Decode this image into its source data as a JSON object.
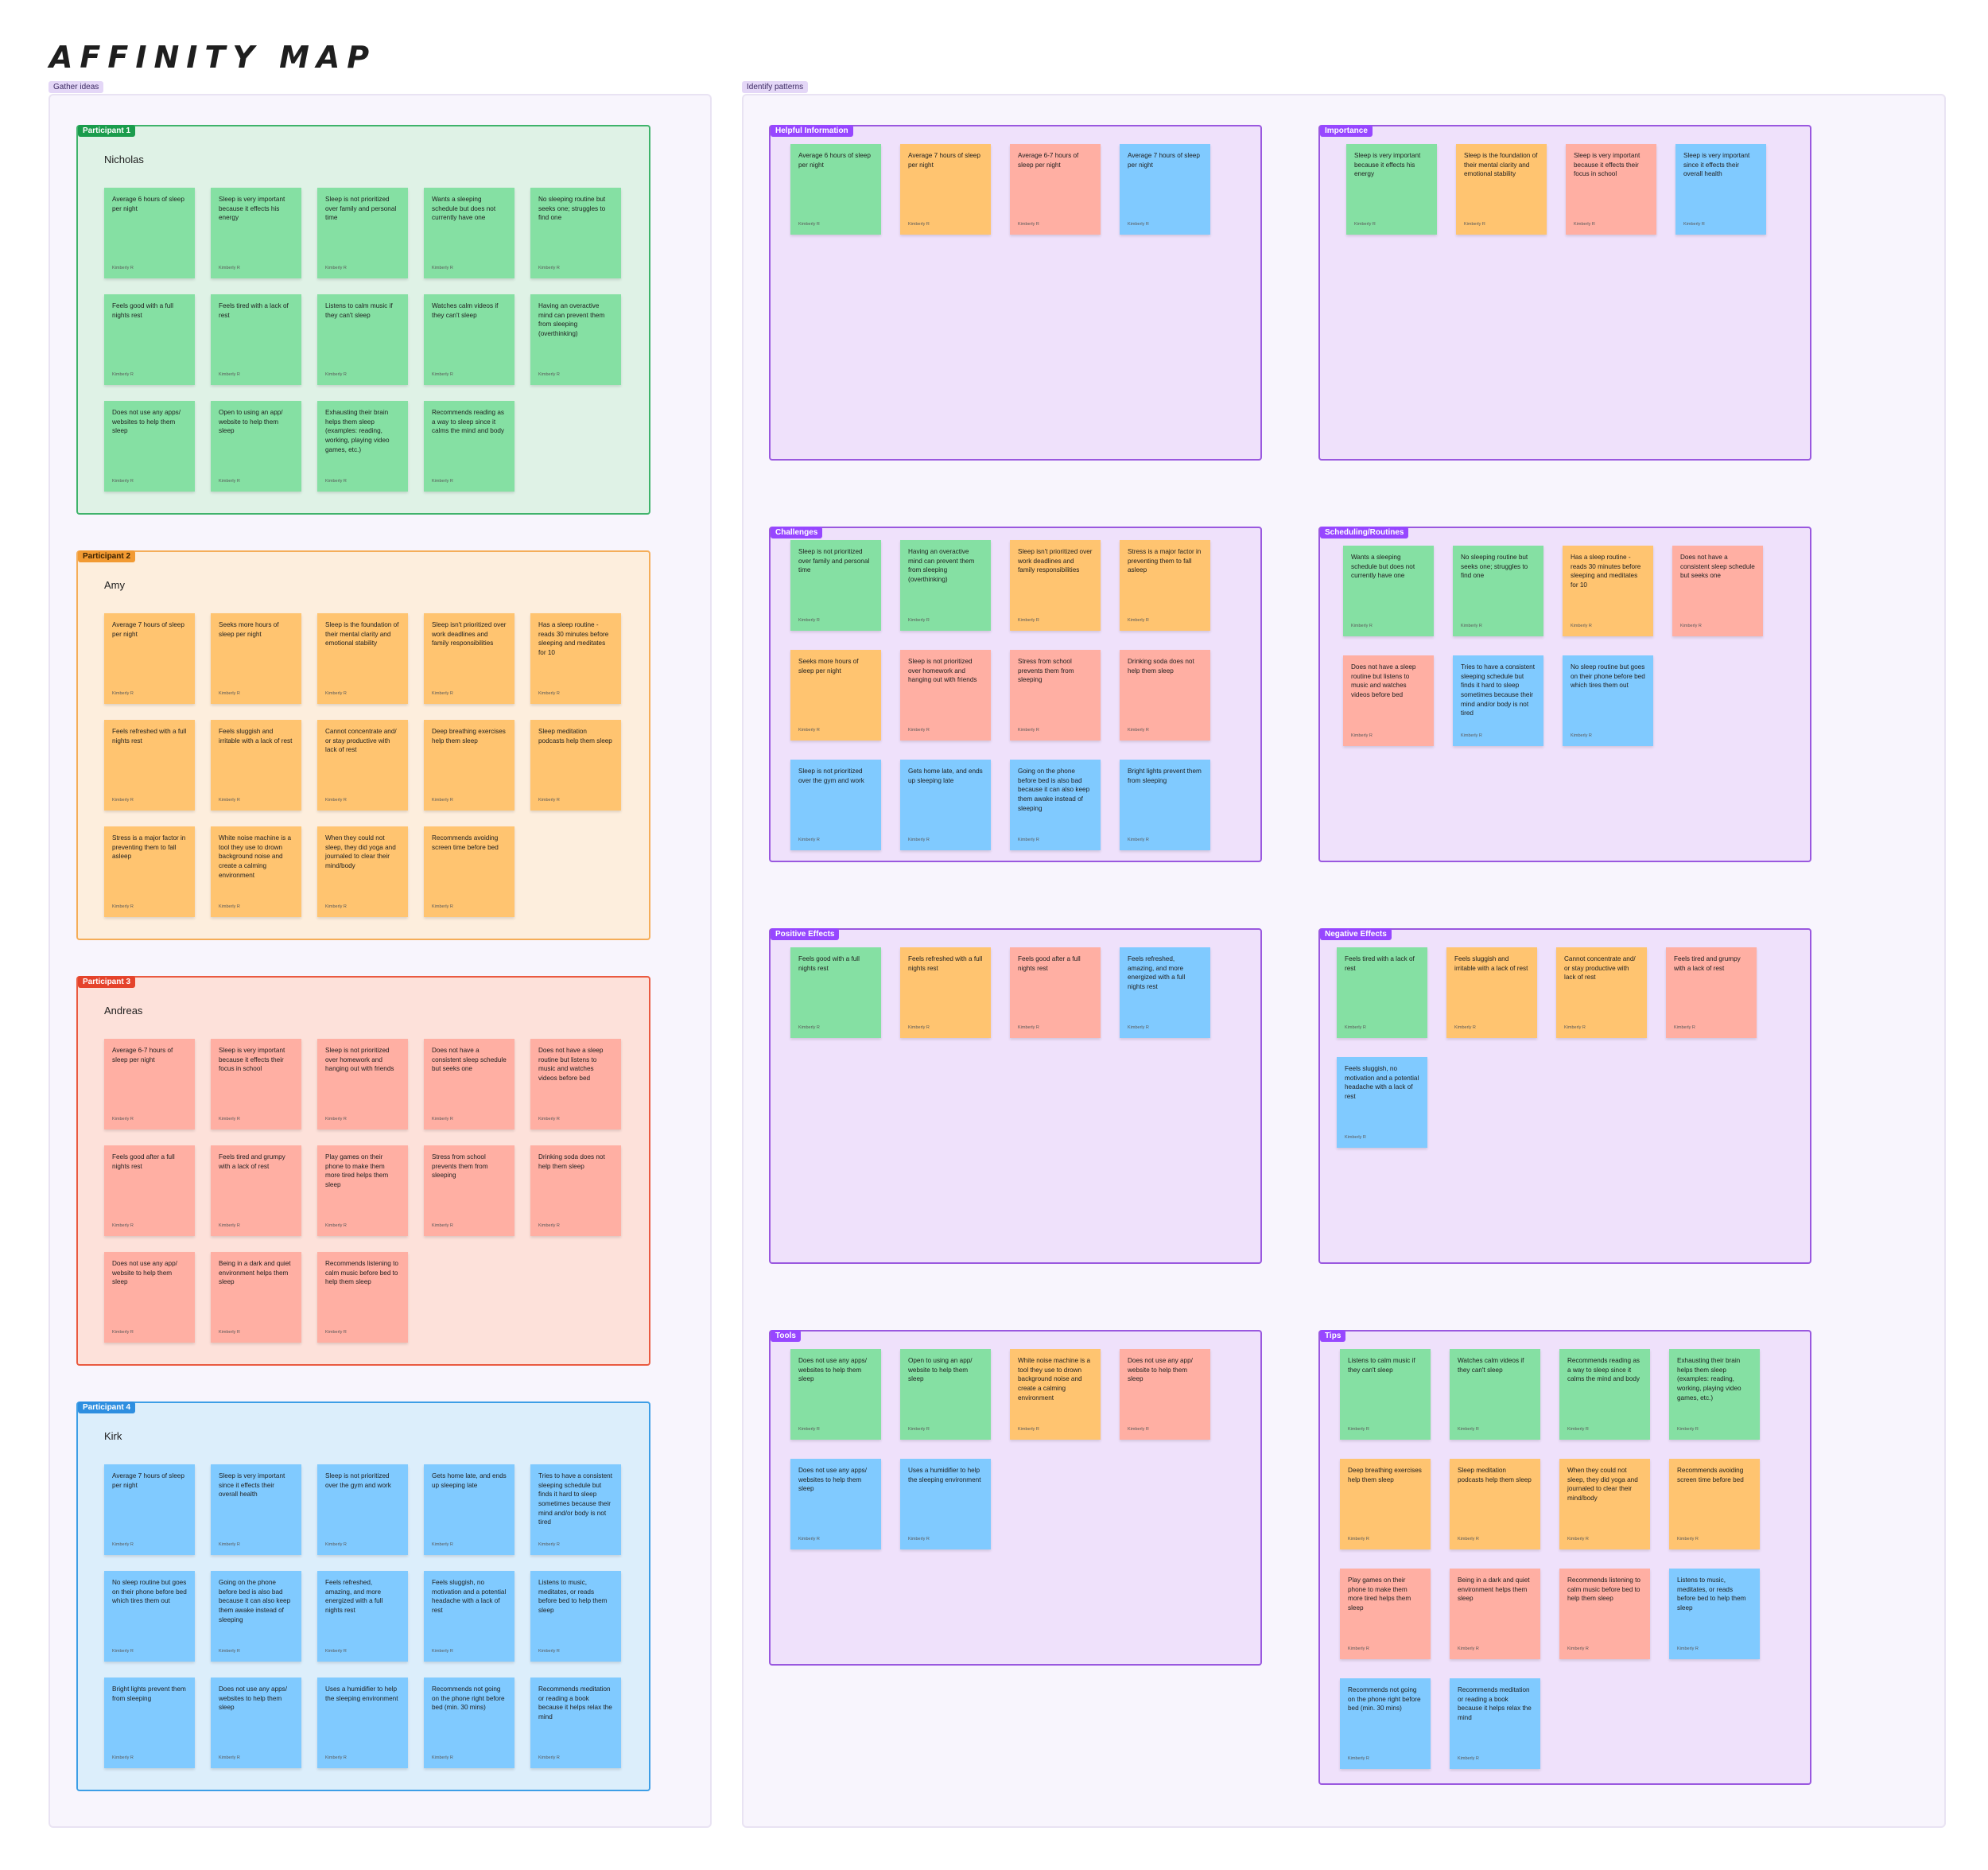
{
  "title": "AFFINITY MAP",
  "sections": {
    "gather": "Gather ideas",
    "patterns": "Identify patterns"
  },
  "author": "Kimberly R",
  "colors": {
    "green": "#85e0a3",
    "orange": "#ffc470",
    "red": "#ffafa3",
    "blue": "#80caff",
    "category_frame": "#efe1fb",
    "category_tag": "#9747ff"
  },
  "participants": [
    {
      "tag": "Participant 1",
      "name": "Nicholas",
      "color": "green",
      "notes": [
        "Average 6 hours of sleep per night",
        "Sleep is very important because it effects his energy",
        "Sleep is not prioritized over family and personal time",
        "Wants a sleeping schedule but does not currently have one",
        "No sleeping routine but seeks one; struggles to find one",
        "Feels good with a full nights rest",
        "Feels tired with a lack of rest",
        "Listens to calm music if they can't sleep",
        "Watches calm videos if they can't sleep",
        "Having an overactive mind can prevent them from sleeping (overthinking)",
        "Does not use any apps/ websites to help them sleep",
        "Open to using an app/ website to help them sleep",
        "Exhausting their brain helps them sleep (examples: reading, working, playing video games, etc.)",
        "Recommends reading as a way to sleep since it calms the mind and body"
      ]
    },
    {
      "tag": "Participant 2",
      "name": "Amy",
      "color": "orange",
      "notes": [
        "Average 7 hours of sleep per night",
        "Seeks more hours of sleep per night",
        "Sleep is the foundation of their mental clarity and emotional stability",
        "Sleep isn't prioritized over work deadlines and family responsibilities",
        "Has a sleep routine - reads 30 minutes before sleeping and meditates for 10",
        "Feels refreshed with a full nights rest",
        "Feels sluggish and irritable with a lack of rest",
        "Cannot concentrate and/ or stay productive with lack of rest",
        "Deep breathing exercises help them sleep",
        "Sleep meditation podcasts help them sleep",
        "Stress is a major factor in preventing them to fall asleep",
        "White noise machine is a tool they use to drown background noise and create a calming environment",
        "When they could not sleep, they did yoga and journaled to clear their mind/body",
        "Recommends avoiding screen time before bed"
      ]
    },
    {
      "tag": "Participant 3",
      "name": "Andreas",
      "color": "red",
      "notes": [
        "Average 6-7 hours of sleep per night",
        "Sleep is very important because it effects their focus in school",
        "Sleep is not prioritized over homework and hanging out with friends",
        "Does not have a consistent sleep schedule but seeks one",
        "Does not have a sleep routine but listens to music and watches videos before bed",
        "Feels good after a full nights rest",
        "Feels tired and grumpy with a lack of rest",
        "Play games on their phone to make them more tired helps them sleep",
        "Stress from school prevents them from sleeping",
        "Drinking soda does not help them sleep",
        "Does not use any app/ website to help them sleep",
        "Being in a dark and quiet environment helps them sleep",
        "Recommends listening to calm music before bed to help them sleep"
      ]
    },
    {
      "tag": "Participant 4",
      "name": "Kirk",
      "color": "blue",
      "notes": [
        "Average 7 hours of sleep per night",
        "Sleep is very important since it effects their overall health",
        "Sleep is not prioritized over the gym and work",
        "Gets home late, and ends up sleeping late",
        "Tries to have a consistent sleeping schedule but finds it hard to sleep sometimes because their mind and/or body is not tired",
        "No sleep routine but goes on their phone before bed which tires them out",
        "Going on the phone before bed is also bad because it can also keep them awake instead of sleeping",
        "Feels refreshed, amazing, and more energized with a full nights rest",
        "Feels sluggish, no motivation and a potential headache with a lack of rest",
        "Listens to music, meditates, or reads before bed to help them sleep",
        "Bright lights prevent them from sleeping",
        "Does not use any apps/ websites to help them sleep",
        "Uses a humidifier to help the sleeping environment",
        "Recommends not going on the phone right before bed (min. 30 mins)",
        "Recommends meditation or reading a book because it helps relax the mind"
      ]
    }
  ],
  "categories": [
    {
      "tag": "Helpful Information",
      "notes": [
        {
          "text": "Average 6 hours of sleep per night",
          "color": "green"
        },
        {
          "text": "Average 7 hours of sleep per night",
          "color": "orange"
        },
        {
          "text": "Average 6-7 hours of sleep per night",
          "color": "red"
        },
        {
          "text": "Average 7 hours of sleep per night",
          "color": "blue"
        }
      ]
    },
    {
      "tag": "Importance",
      "notes": [
        {
          "text": "Sleep is very important because it effects his energy",
          "color": "green"
        },
        {
          "text": "Sleep is the foundation of their mental clarity and emotional stability",
          "color": "orange"
        },
        {
          "text": "Sleep is very important because it effects their focus in school",
          "color": "red"
        },
        {
          "text": "Sleep is very important since it effects their overall health",
          "color": "blue"
        }
      ]
    },
    {
      "tag": "Challenges",
      "notes": [
        {
          "text": "Sleep is not prioritized over family and personal time",
          "color": "green"
        },
        {
          "text": "Having an overactive mind can prevent them from sleeping (overthinking)",
          "color": "green"
        },
        {
          "text": "Sleep isn't prioritized over work deadlines and family responsibilities",
          "color": "orange"
        },
        {
          "text": "Stress is a major factor in preventing them to fall asleep",
          "color": "orange"
        },
        {
          "text": "Seeks more hours of sleep per night",
          "color": "orange"
        },
        {
          "text": "Sleep is not prioritized over homework and hanging out with friends",
          "color": "red"
        },
        {
          "text": "Stress from school prevents them from sleeping",
          "color": "red"
        },
        {
          "text": "Drinking soda does not help them sleep",
          "color": "red"
        },
        {
          "text": "Sleep is not prioritized over the gym and work",
          "color": "blue"
        },
        {
          "text": "Gets home late, and ends up sleeping late",
          "color": "blue"
        },
        {
          "text": "Going on the phone before bed is also bad because it can also keep them awake instead of sleeping",
          "color": "blue"
        },
        {
          "text": "Bright lights prevent them from sleeping",
          "color": "blue"
        }
      ]
    },
    {
      "tag": "Scheduling/Routines",
      "notes": [
        {
          "text": "Wants a sleeping schedule but does not currently have one",
          "color": "green"
        },
        {
          "text": "No sleeping routine but seeks one; struggles to find one",
          "color": "green"
        },
        {
          "text": "Has a sleep routine - reads 30 minutes before sleeping and meditates for 10",
          "color": "orange"
        },
        {
          "text": "Does not have a consistent sleep schedule but seeks one",
          "color": "red"
        },
        {
          "text": "Does not have a sleep routine but listens to music and watches videos before bed",
          "color": "red"
        },
        {
          "text": "Tries to have a consistent sleeping schedule but finds it hard to sleep sometimes because their mind and/or body is not tired",
          "color": "blue"
        },
        {
          "text": "No sleep routine but goes on their phone before bed which tires them out",
          "color": "blue"
        }
      ]
    },
    {
      "tag": "Positive Effects",
      "notes": [
        {
          "text": "Feels good with a full nights rest",
          "color": "green"
        },
        {
          "text": "Feels refreshed with a full nights rest",
          "color": "orange"
        },
        {
          "text": "Feels good after a full nights rest",
          "color": "red"
        },
        {
          "text": "Feels refreshed, amazing, and more energized with a full nights rest",
          "color": "blue"
        }
      ]
    },
    {
      "tag": "Negative Effects",
      "notes": [
        {
          "text": "Feels tired with a lack of rest",
          "color": "green"
        },
        {
          "text": "Feels sluggish and irritable with a lack of rest",
          "color": "orange"
        },
        {
          "text": "Cannot concentrate and/ or stay productive with lack of rest",
          "color": "orange"
        },
        {
          "text": "Feels tired and grumpy with a lack of rest",
          "color": "red"
        },
        {
          "text": "Feels sluggish, no motivation and a potential headache with a lack of rest",
          "color": "blue"
        }
      ]
    },
    {
      "tag": "Tools",
      "notes": [
        {
          "text": "Does not use any apps/ websites to help them sleep",
          "color": "green"
        },
        {
          "text": "Open to using an app/ website to help them sleep",
          "color": "green"
        },
        {
          "text": "White noise machine is a tool they use to drown background noise and create a calming environment",
          "color": "orange"
        },
        {
          "text": "Does not use any app/ website to help them sleep",
          "color": "red"
        },
        {
          "text": "Does not use any apps/ websites to help them sleep",
          "color": "blue"
        },
        {
          "text": "Uses a humidifier to help the sleeping environment",
          "color": "blue"
        }
      ]
    },
    {
      "tag": "Tips",
      "notes": [
        {
          "text": "Listens to calm music if they can't sleep",
          "color": "green"
        },
        {
          "text": "Watches calm videos if they can't sleep",
          "color": "green"
        },
        {
          "text": "Recommends reading as a way to sleep since it calms the mind and body",
          "color": "green"
        },
        {
          "text": "Exhausting their brain helps them sleep (examples: reading, working, playing video games, etc.)",
          "color": "green"
        },
        {
          "text": "Deep breathing exercises help them sleep",
          "color": "orange"
        },
        {
          "text": "Sleep meditation podcasts help them sleep",
          "color": "orange"
        },
        {
          "text": "When they could not sleep, they did yoga and journaled to clear their mind/body",
          "color": "orange"
        },
        {
          "text": "Recommends avoiding screen time before bed",
          "color": "orange"
        },
        {
          "text": "Play games on their phone to make them more tired helps them sleep",
          "color": "red"
        },
        {
          "text": "Being in a dark and quiet environment helps them sleep",
          "color": "red"
        },
        {
          "text": "Recommends listening to calm music before bed to help them sleep",
          "color": "red"
        },
        {
          "text": "Listens to music, meditates, or reads before bed to help them sleep",
          "color": "blue"
        },
        {
          "text": "Recommends not going on the phone right before bed (min. 30 mins)",
          "color": "blue"
        },
        {
          "text": "Recommends meditation or reading a book because it helps relax the mind",
          "color": "blue"
        }
      ]
    }
  ]
}
